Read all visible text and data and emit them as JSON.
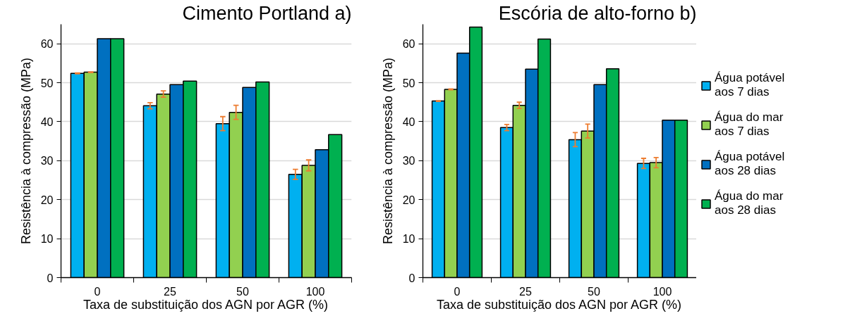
{
  "chart_data": [
    {
      "type": "bar",
      "title": "Cimento Portland a)",
      "xlabel": "Taxa de substituição dos AGN por AGR (%)",
      "ylabel": "Resistência à compressão (MPa)",
      "categories": [
        "0",
        "25",
        "50",
        "100"
      ],
      "series": [
        {
          "color": "#00b0f0",
          "values": [
            52.4,
            44.1,
            39.5,
            26.5
          ],
          "errors": [
            0.1,
            0.8,
            1.8,
            1.3
          ]
        },
        {
          "color": "#92d050",
          "values": [
            52.7,
            47.1,
            42.4,
            28.8
          ],
          "errors": [
            0.1,
            0.8,
            1.8,
            1.4
          ]
        },
        {
          "color": "#0070c0",
          "values": [
            61.3,
            49.5,
            48.8,
            32.8
          ]
        },
        {
          "color": "#00b050",
          "values": [
            61.3,
            50.4,
            50.2,
            36.7
          ]
        }
      ],
      "ylim": [
        0,
        65
      ],
      "yticks": [
        0,
        10,
        20,
        30,
        40,
        50,
        60
      ],
      "grid": "y"
    },
    {
      "type": "bar",
      "title": "Escória de alto-forno b)",
      "xlabel": "Taxa de substituição dos AGN por AGR (%)",
      "ylabel": "Resistência à compressão (MPa)",
      "categories": [
        "0",
        "25",
        "50",
        "100"
      ],
      "series": [
        {
          "name": "Água potável aos 7 dias",
          "color": "#00b0f0",
          "values": [
            45.3,
            38.5,
            35.4,
            29.3
          ],
          "errors": [
            0.1,
            0.8,
            1.8,
            1.3
          ]
        },
        {
          "name": "Água do mar aos 7 dias",
          "color": "#92d050",
          "values": [
            48.3,
            44.2,
            37.6,
            29.5
          ],
          "errors": [
            0.1,
            0.8,
            1.8,
            1.3
          ]
        },
        {
          "name": "Água potável aos 28 dias",
          "color": "#0070c0",
          "values": [
            57.6,
            53.5,
            49.5,
            40.4
          ]
        },
        {
          "name": "Água do mar aos 28 dias",
          "color": "#00b050",
          "values": [
            64.3,
            61.2,
            53.6,
            40.4
          ]
        }
      ],
      "ylim": [
        0,
        65
      ],
      "yticks": [
        0,
        10,
        20,
        30,
        40,
        50,
        60
      ],
      "grid": "y",
      "legend": "right"
    }
  ]
}
